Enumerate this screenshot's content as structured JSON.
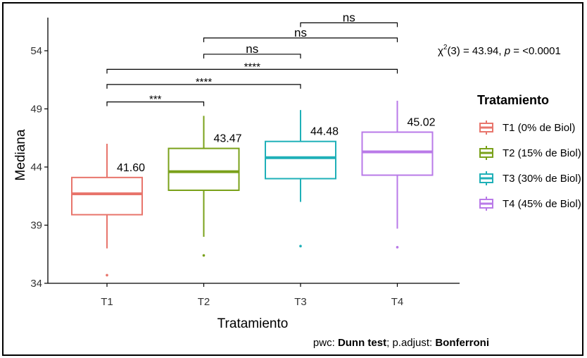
{
  "chart_data": {
    "type": "boxplot",
    "xlabel": "Tratamiento",
    "ylabel": "Mediana",
    "ylim": [
      34,
      57
    ],
    "yticks": [
      34,
      39,
      44,
      49,
      54
    ],
    "categories": [
      "T1",
      "T2",
      "T3",
      "T4"
    ],
    "boxes": [
      {
        "category": "T1",
        "color": "#E8756C",
        "min": 37.0,
        "q1": 39.9,
        "median": 41.7,
        "q3": 43.1,
        "max": 46.0,
        "outliers": [
          34.7
        ],
        "label": "41.60"
      },
      {
        "category": "T2",
        "color": "#7AA11A",
        "min": 38.0,
        "q1": 42.0,
        "median": 43.6,
        "q3": 45.6,
        "max": 48.4,
        "outliers": [
          36.4
        ],
        "label": "43.47"
      },
      {
        "category": "T3",
        "color": "#1FB0B8",
        "min": 41.0,
        "q1": 43.0,
        "median": 44.8,
        "q3": 46.2,
        "max": 48.9,
        "outliers": [
          37.2
        ],
        "label": "44.48"
      },
      {
        "category": "T4",
        "color": "#B97AE8",
        "min": 38.7,
        "q1": 43.3,
        "median": 45.3,
        "q3": 47.0,
        "max": 49.7,
        "outliers": [
          37.1
        ],
        "label": "45.02"
      }
    ],
    "comparisons": [
      {
        "from": "T1",
        "to": "T2",
        "y": 49.6,
        "label": "***"
      },
      {
        "from": "T1",
        "to": "T3",
        "y": 51.1,
        "label": "****"
      },
      {
        "from": "T1",
        "to": "T4",
        "y": 52.4,
        "label": "****"
      },
      {
        "from": "T2",
        "to": "T3",
        "y": 53.7,
        "label": "ns"
      },
      {
        "from": "T2",
        "to": "T4",
        "y": 55.1,
        "label": "ns"
      },
      {
        "from": "T3",
        "to": "T4",
        "y": 56.4,
        "label": "ns"
      }
    ],
    "stat_label": {
      "prefix": "χ",
      "sup": "2",
      "rest": "(3) = 43.94, ",
      "p_italic": "p",
      "p_rest": " = <0.0001"
    },
    "legend": {
      "title": "Tratamiento",
      "position": "right",
      "entries": [
        "T1 (0% de Biol)",
        "T2 (15% de Biol)",
        "T3 (30% de Biol)",
        "T4 (45% de Biol)"
      ]
    },
    "caption": {
      "pre": "pwc: ",
      "test": "Dunn test",
      "mid": "; p.adjust: ",
      "adjust": "Bonferroni"
    }
  }
}
